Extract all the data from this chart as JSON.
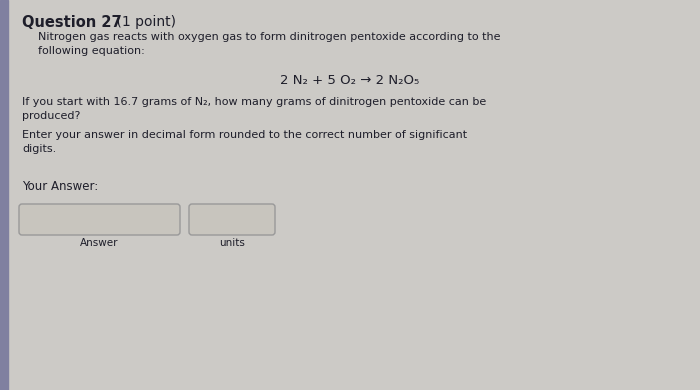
{
  "title_bold": "Question 27",
  "title_normal": " (1 point)",
  "body_line1": "Nitrogen gas reacts with oxygen gas to form dinitrogen pentoxide according to the",
  "body_line2": "following equation:",
  "equation": "2 N₂ + 5 O₂ → 2 N₂O₅",
  "question_line1": "If you start with 16.7 grams of N₂, how many grams of dinitrogen pentoxide can be",
  "question_line2": "produced?",
  "instruction_line1": "Enter your answer in decimal form rounded to the correct number of significant",
  "instruction_line2": "digits.",
  "your_answer": "Your Answer:",
  "answer_label": "Answer",
  "units_label": "units",
  "bg_color": "#cccac6",
  "text_color": "#1e1e2a",
  "box_color": "#c8c5be",
  "box_border": "#999999",
  "left_bar_color": "#8080a0"
}
